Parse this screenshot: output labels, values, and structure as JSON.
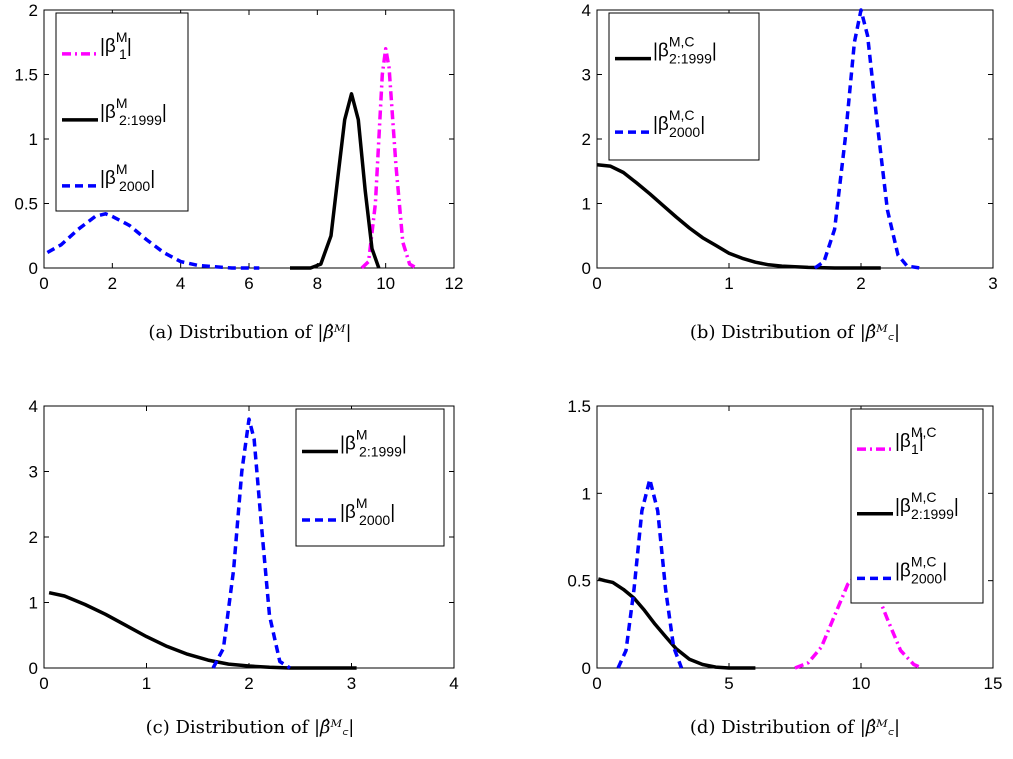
{
  "figure": {
    "colors": {
      "magenta": "#ff00ff",
      "black": "#000000",
      "blue": "#0000ff"
    },
    "line_styles": {
      "magenta": "dash-dot",
      "black": "solid",
      "blue": "dashed"
    }
  },
  "chart_data": [
    {
      "id": "a",
      "type": "line",
      "caption_prefix": "(a)  Distribution of ",
      "caption_math": "|β̂ᴹ|",
      "xlim": [
        0,
        12
      ],
      "ylim": [
        0,
        2
      ],
      "xticks": [
        0,
        2,
        4,
        6,
        8,
        10,
        12
      ],
      "xtick_labels": [
        "0",
        "2",
        "4",
        "6",
        "8",
        "10",
        "12"
      ],
      "yticks": [
        0,
        0.5,
        1,
        1.5,
        2
      ],
      "ytick_labels": [
        "0",
        "0.5",
        "1",
        "1.5",
        "2"
      ],
      "legend_position": "top-left",
      "series": [
        {
          "legend_main": "|β",
          "legend_sup": "M",
          "legend_sub": "1",
          "legend_close": "|",
          "color": "#ff00ff",
          "style": "dash-dot",
          "x": [
            9.3,
            9.5,
            9.7,
            9.9,
            10.0,
            10.1,
            10.3,
            10.5,
            10.7,
            10.9
          ],
          "y": [
            0.0,
            0.05,
            0.5,
            1.5,
            1.7,
            1.55,
            0.8,
            0.2,
            0.03,
            0.0
          ]
        },
        {
          "legend_main": "|β",
          "legend_sup": "M",
          "legend_sub": "2:1999",
          "legend_close": "|",
          "color": "#000000",
          "style": "solid",
          "x": [
            7.2,
            7.8,
            8.1,
            8.4,
            8.6,
            8.8,
            9.0,
            9.2,
            9.4,
            9.6,
            9.8
          ],
          "y": [
            0.0,
            0.0,
            0.03,
            0.25,
            0.7,
            1.15,
            1.35,
            1.15,
            0.6,
            0.15,
            0.0
          ]
        },
        {
          "legend_main": "|β",
          "legend_sup": "M",
          "legend_sub": "2000",
          "legend_close": "|",
          "color": "#0000ff",
          "style": "dashed",
          "x": [
            0.1,
            0.5,
            1.0,
            1.5,
            1.8,
            2.0,
            2.5,
            3.0,
            3.5,
            4.0,
            4.5,
            5.0,
            5.5,
            6.0,
            6.3
          ],
          "y": [
            0.12,
            0.18,
            0.3,
            0.4,
            0.42,
            0.4,
            0.33,
            0.22,
            0.12,
            0.05,
            0.02,
            0.01,
            0.0,
            0.0,
            0.0
          ]
        }
      ]
    },
    {
      "id": "b",
      "type": "line",
      "caption_prefix": "(b)  Distribution of ",
      "caption_math": "|β̂ᴹ꜀|",
      "xlim": [
        0,
        3
      ],
      "ylim": [
        0,
        4
      ],
      "xticks": [
        0,
        1,
        2,
        3
      ],
      "xtick_labels": [
        "0",
        "1",
        "2",
        "3"
      ],
      "yticks": [
        0,
        1,
        2,
        3,
        4
      ],
      "ytick_labels": [
        "0",
        "1",
        "2",
        "3",
        "4"
      ],
      "legend_position": "top-left",
      "series": [
        {
          "legend_main": "|β",
          "legend_sup": "M,C",
          "legend_sub": "2:1999",
          "legend_close": "|",
          "color": "#000000",
          "style": "solid",
          "x": [
            0.0,
            0.1,
            0.2,
            0.3,
            0.4,
            0.5,
            0.6,
            0.7,
            0.8,
            0.9,
            1.0,
            1.1,
            1.2,
            1.3,
            1.4,
            1.6,
            1.8,
            2.0,
            2.15
          ],
          "y": [
            1.6,
            1.58,
            1.48,
            1.32,
            1.15,
            0.97,
            0.79,
            0.62,
            0.47,
            0.35,
            0.23,
            0.15,
            0.09,
            0.05,
            0.03,
            0.01,
            0.0,
            0.0,
            0.0
          ]
        },
        {
          "legend_main": "|β",
          "legend_sup": "M,C",
          "legend_sub": "2000",
          "legend_close": "|",
          "color": "#0000ff",
          "style": "dashed",
          "x": [
            1.65,
            1.72,
            1.8,
            1.88,
            1.95,
            2.0,
            2.05,
            2.12,
            2.2,
            2.28,
            2.35,
            2.45
          ],
          "y": [
            0.0,
            0.1,
            0.6,
            2.0,
            3.5,
            4.0,
            3.6,
            2.3,
            0.9,
            0.2,
            0.03,
            0.0
          ]
        }
      ]
    },
    {
      "id": "c",
      "type": "line",
      "caption_prefix": "(c)  Distribution of ",
      "caption_math": "|β̂ᴹ꜀|",
      "xlim": [
        0,
        4
      ],
      "ylim": [
        0,
        4
      ],
      "xticks": [
        0,
        1,
        2,
        3,
        4
      ],
      "xtick_labels": [
        "0",
        "1",
        "2",
        "3",
        "4"
      ],
      "yticks": [
        0,
        1,
        2,
        3,
        4
      ],
      "ytick_labels": [
        "0",
        "1",
        "2",
        "3",
        "4"
      ],
      "legend_position": "top-right",
      "series": [
        {
          "legend_main": "|β",
          "legend_sup": "M",
          "legend_sub": "2:1999",
          "legend_close": "|",
          "color": "#000000",
          "style": "solid",
          "x": [
            0.05,
            0.2,
            0.4,
            0.6,
            0.8,
            1.0,
            1.2,
            1.4,
            1.6,
            1.8,
            2.0,
            2.2,
            2.4,
            2.6,
            2.8,
            3.05
          ],
          "y": [
            1.15,
            1.1,
            0.97,
            0.82,
            0.65,
            0.48,
            0.33,
            0.21,
            0.12,
            0.06,
            0.03,
            0.01,
            0.0,
            0.0,
            0.0,
            0.0
          ]
        },
        {
          "legend_main": "|β",
          "legend_sup": "M",
          "legend_sub": "2000",
          "legend_close": "|",
          "color": "#0000ff",
          "style": "dashed",
          "x": [
            1.65,
            1.75,
            1.85,
            1.93,
            2.0,
            2.05,
            2.12,
            2.2,
            2.3,
            2.4
          ],
          "y": [
            0.0,
            0.3,
            1.5,
            3.0,
            3.8,
            3.5,
            2.2,
            0.8,
            0.1,
            0.0
          ]
        }
      ]
    },
    {
      "id": "d",
      "type": "line",
      "caption_prefix": "(d)  Distribution of ",
      "caption_math": "|β̂ᴹ꜀|",
      "xlim": [
        0,
        15
      ],
      "ylim": [
        0,
        1.5
      ],
      "xticks": [
        0,
        5,
        10,
        15
      ],
      "xtick_labels": [
        "0",
        "5",
        "10",
        "15"
      ],
      "yticks": [
        0,
        0.5,
        1,
        1.5
      ],
      "ytick_labels": [
        "0",
        "0.5",
        "1",
        "1.5"
      ],
      "legend_position": "top-right",
      "series": [
        {
          "legend_main": "|β",
          "legend_sup": "M,C",
          "legend_sub": "1",
          "legend_close": "|",
          "color": "#ff00ff",
          "style": "dash-dot",
          "x": [
            7.5,
            8.0,
            8.5,
            9.0,
            9.5,
            10.0,
            10.5,
            11.0,
            11.5,
            12.0,
            12.3
          ],
          "y": [
            0.0,
            0.03,
            0.12,
            0.3,
            0.48,
            0.56,
            0.47,
            0.28,
            0.1,
            0.02,
            0.0
          ]
        },
        {
          "legend_main": "|β",
          "legend_sup": "M,C",
          "legend_sub": "2:1999",
          "legend_close": "|",
          "color": "#000000",
          "style": "solid",
          "x": [
            0.05,
            0.3,
            0.6,
            1.0,
            1.4,
            1.8,
            2.2,
            2.6,
            3.0,
            3.5,
            4.0,
            4.5,
            5.0,
            6.0
          ],
          "y": [
            0.51,
            0.5,
            0.49,
            0.45,
            0.4,
            0.33,
            0.25,
            0.18,
            0.11,
            0.05,
            0.02,
            0.005,
            0.0,
            0.0
          ]
        },
        {
          "legend_main": "|β",
          "legend_sup": "M,C",
          "legend_sub": "2000",
          "legend_close": "|",
          "color": "#0000ff",
          "style": "dashed",
          "x": [
            0.8,
            1.1,
            1.4,
            1.7,
            2.0,
            2.3,
            2.6,
            2.9,
            3.2
          ],
          "y": [
            0.0,
            0.1,
            0.45,
            0.9,
            1.08,
            0.9,
            0.45,
            0.12,
            0.0
          ]
        }
      ]
    }
  ]
}
